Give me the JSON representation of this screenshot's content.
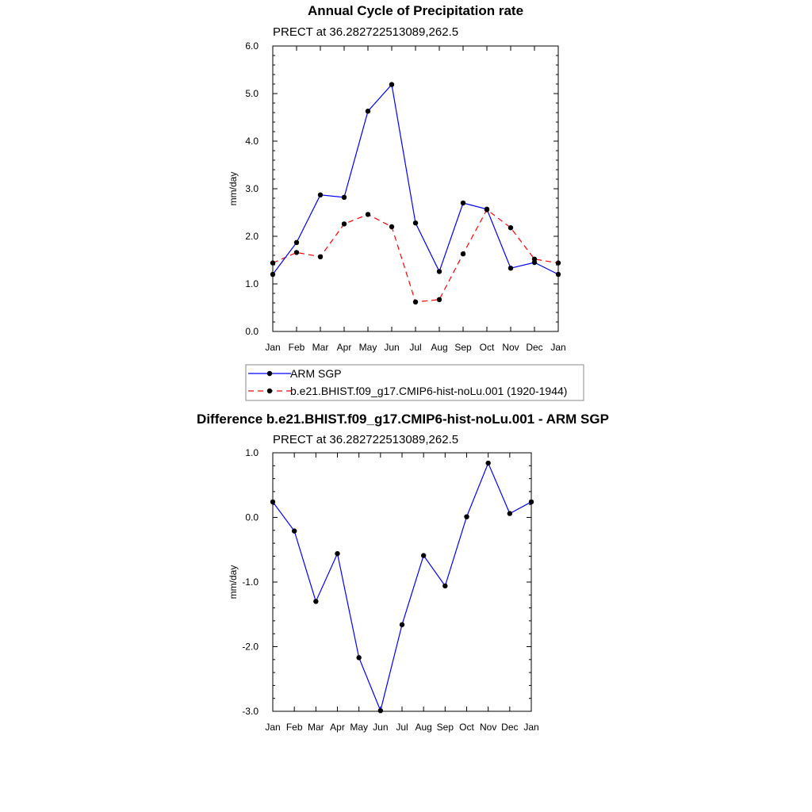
{
  "chart_data": [
    {
      "type": "line",
      "title": "Annual Cycle of Precipitation rate",
      "subtitle": "PRECT at 36.282722513089,262.5",
      "xlabel": "",
      "ylabel": "mm/day",
      "categories": [
        "Jan",
        "Feb",
        "Mar",
        "Apr",
        "May",
        "Jun",
        "Jul",
        "Aug",
        "Sep",
        "Oct",
        "Nov",
        "Dec",
        "Jan"
      ],
      "ylim": [
        0.0,
        6.0
      ],
      "yticks": [
        "0.0",
        "1.0",
        "2.0",
        "3.0",
        "4.0",
        "5.0",
        "6.0"
      ],
      "ytick_values": [
        0,
        1,
        2,
        3,
        4,
        5,
        6
      ],
      "series": [
        {
          "name": "ARM SGP",
          "color": "#0000ff",
          "dash": "solid",
          "values": [
            1.2,
            1.87,
            2.87,
            2.82,
            4.63,
            5.19,
            2.28,
            1.26,
            2.7,
            2.57,
            1.33,
            1.45,
            1.2
          ]
        },
        {
          "name": "b.e21.BHIST.f09_g17.CMIP6-hist-noLu.001 (1920-1944)",
          "color": "#ff0000",
          "dash": "dashed",
          "values": [
            1.44,
            1.66,
            1.57,
            2.26,
            2.46,
            2.2,
            0.62,
            0.67,
            1.63,
            2.56,
            2.18,
            1.52,
            1.44
          ]
        }
      ],
      "legend": [
        "ARM SGP",
        "b.e21.BHIST.f09_g17.CMIP6-hist-noLu.001 (1920-1944)"
      ]
    },
    {
      "type": "line",
      "title": "Difference b.e21.BHIST.f09_g17.CMIP6-hist-noLu.001 - ARM SGP",
      "subtitle": "PRECT at 36.282722513089,262.5",
      "xlabel": "",
      "ylabel": "mm/day",
      "categories": [
        "Jan",
        "Feb",
        "Mar",
        "Apr",
        "May",
        "Jun",
        "Jul",
        "Aug",
        "Sep",
        "Oct",
        "Nov",
        "Dec",
        "Jan"
      ],
      "ylim": [
        -3.0,
        1.0
      ],
      "yticks": [
        "-3.0",
        "-2.0",
        "-1.0",
        "0.0",
        "1.0"
      ],
      "ytick_values": [
        -3,
        -2,
        -1,
        0,
        1
      ],
      "series": [
        {
          "name": "Difference",
          "color": "#0000ff",
          "dash": "solid",
          "values": [
            0.24,
            -0.21,
            -1.3,
            -0.56,
            -2.17,
            -2.99,
            -1.66,
            -0.59,
            -1.06,
            0.01,
            0.84,
            0.06,
            0.24
          ]
        }
      ]
    }
  ]
}
